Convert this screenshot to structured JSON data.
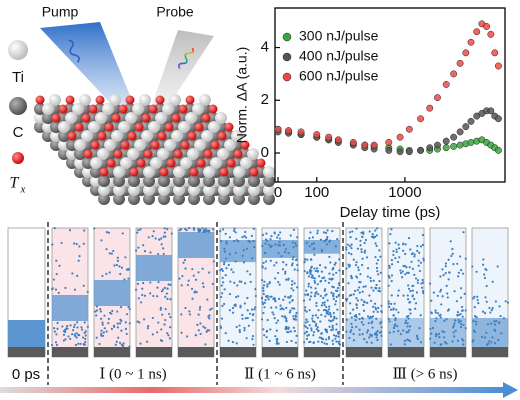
{
  "schematic": {
    "pump": "Pump",
    "probe": "Probe",
    "legend": [
      {
        "label": "Ti"
      },
      {
        "label": "C"
      },
      {
        "label": "T",
        "subscript": "x"
      }
    ]
  },
  "stages": {
    "labels": [
      "0 ps",
      "Ⅰ (0 ~ 1 ns)",
      "Ⅱ (1 ~ 6 ns)",
      "Ⅲ (> 6 ns)"
    ]
  },
  "chart_data": {
    "type": "scatter",
    "xlabel": "Delay time (ps)",
    "ylabel": "Norm. ΔA (a.u.)",
    "x": [
      0,
      20,
      50,
      100,
      150,
      200,
      300,
      400,
      500,
      700,
      900,
      1100,
      1400,
      1700,
      2000,
      2400,
      2800,
      3200,
      3600,
      4000,
      4500,
      5000,
      5500,
      6000,
      6500,
      7000
    ],
    "series": [
      {
        "name": "300 nJ/pulse",
        "color": "#3aa63a",
        "values": [
          0.9,
          0.8,
          0.7,
          0.6,
          0.5,
          0.45,
          0.35,
          0.3,
          0.25,
          0.2,
          0.15,
          0.1,
          0.1,
          0.1,
          0.15,
          0.2,
          0.25,
          0.3,
          0.35,
          0.4,
          0.45,
          0.5,
          0.4,
          0.3,
          0.2,
          0.1
        ]
      },
      {
        "name": "400 nJ/pulse",
        "color": "#555555",
        "values": [
          0.8,
          0.75,
          0.7,
          0.6,
          0.5,
          0.4,
          0.3,
          0.2,
          0.15,
          0.1,
          0.05,
          0.05,
          0.1,
          0.2,
          0.3,
          0.45,
          0.6,
          0.8,
          1.0,
          1.2,
          1.4,
          1.5,
          1.6,
          1.6,
          1.4,
          1.3
        ]
      },
      {
        "name": "600 nJ/pulse",
        "color": "#f04848",
        "values": [
          0.9,
          0.85,
          0.8,
          0.7,
          0.6,
          0.5,
          0.4,
          0.3,
          0.3,
          0.4,
          0.6,
          0.9,
          1.3,
          1.7,
          2.1,
          2.6,
          3.0,
          3.4,
          3.8,
          4.2,
          4.6,
          4.9,
          4.8,
          4.5,
          3.8,
          3.3
        ]
      }
    ],
    "xlim": [
      -5,
      8000
    ],
    "ylim": [
      -1.1,
      5.5
    ],
    "xticks": [
      0,
      100,
      1000
    ],
    "yticks": [
      0,
      2,
      4
    ],
    "legend": "upper left"
  }
}
